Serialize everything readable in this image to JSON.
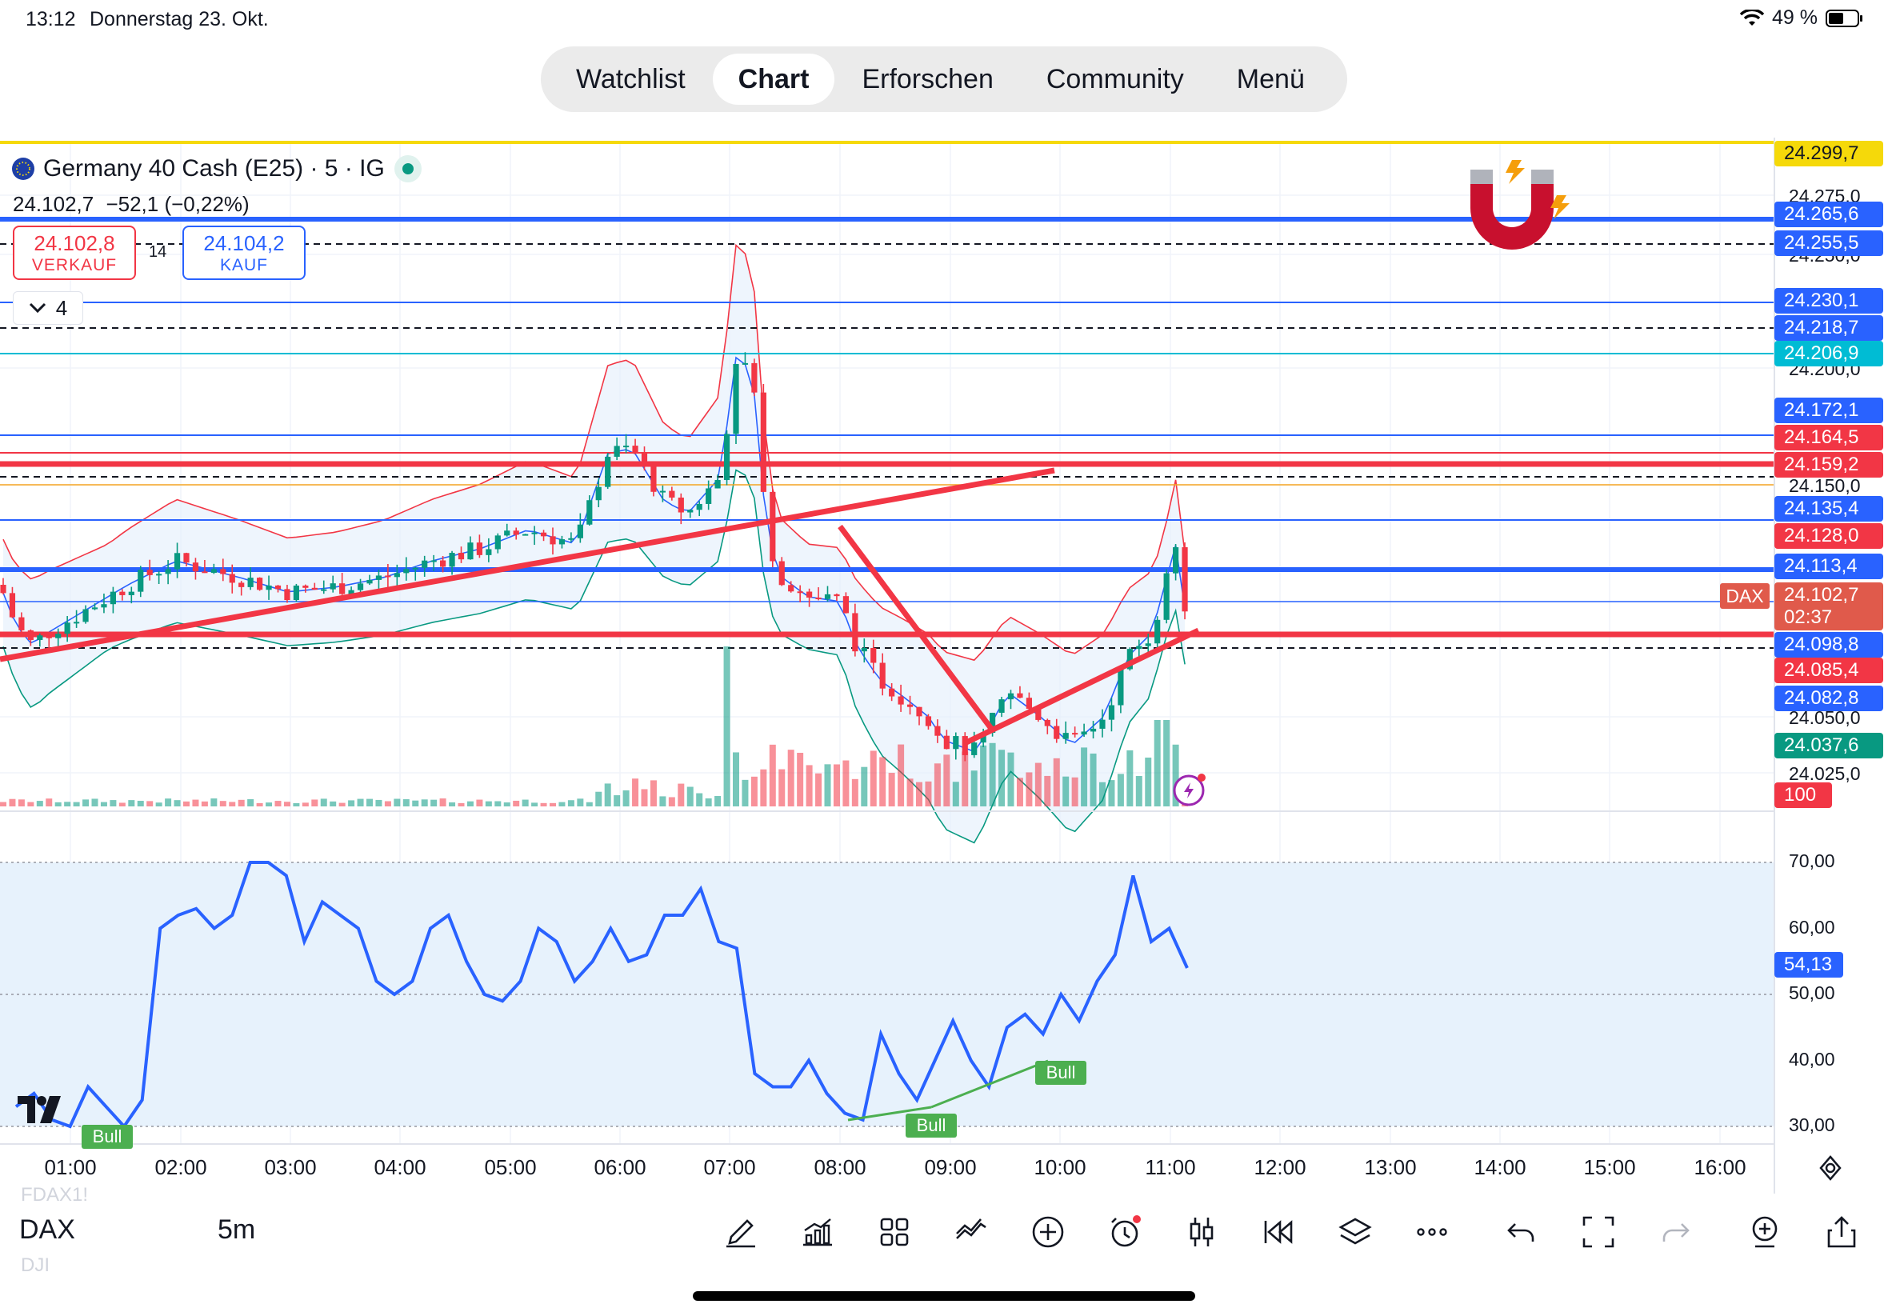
{
  "status_bar": {
    "time": "13:12",
    "date": "Donnerstag 23. Okt.",
    "battery": "49 %"
  },
  "nav_tabs": [
    "Watchlist",
    "Chart",
    "Erforschen",
    "Community",
    "Menü"
  ],
  "active_tab": "Chart",
  "legend": {
    "symbol": "Germany 40 Cash (E25) · 5 · IG",
    "last": "24.102,7",
    "change": "−52,1 (−0,22%)",
    "sell_price": "24.102,8",
    "sell_label": "VERKAUF",
    "buy_price": "24.104,2",
    "buy_label": "KAUF",
    "spread": "14",
    "collapsed_count": "4"
  },
  "price_axis": {
    "ticks": [
      "24.275,0",
      "24.250,0",
      "24.200,0",
      "24.150,0",
      "24.050,0",
      "24.025,0"
    ],
    "labels": [
      {
        "text": "24.299,7",
        "color": "#f5d90a",
        "text_color": "#131722"
      },
      {
        "text": "24.265,6",
        "color": "#2962ff"
      },
      {
        "text": "24.255,5",
        "color": "#2962ff"
      },
      {
        "text": "24.230,1",
        "color": "#2962ff"
      },
      {
        "text": "24.218,7",
        "color": "#2962ff"
      },
      {
        "text": "24.206,9",
        "color": "#00bcd4"
      },
      {
        "text": "24.172,1",
        "color": "#2962ff"
      },
      {
        "text": "24.164,5",
        "color": "#f23645"
      },
      {
        "text": "24.159,2",
        "color": "#f23645"
      },
      {
        "text": "24.135,4",
        "color": "#2962ff"
      },
      {
        "text": "24.128,0",
        "color": "#f23645"
      },
      {
        "text": "24.113,4",
        "color": "#2962ff"
      },
      {
        "text": "24.102,7",
        "color": "#e05a4b"
      },
      {
        "text": "02:37",
        "color": "#e05a4b"
      },
      {
        "text": "24.098,8",
        "color": "#2962ff"
      },
      {
        "text": "24.085,4",
        "color": "#f23645"
      },
      {
        "text": "24.082,8",
        "color": "#2962ff"
      },
      {
        "text": "24.037,6",
        "color": "#089981"
      },
      {
        "text": "100",
        "color": "#f23645"
      }
    ],
    "dax_tag": "DAX"
  },
  "rsi_axis": {
    "ticks": [
      "70,00",
      "60,00",
      "50,00",
      "40,00",
      "30,00"
    ],
    "current": "54,13"
  },
  "rsi_labels": [
    "Bull",
    "Bull",
    "Bull"
  ],
  "time_axis": [
    "01:00",
    "02:00",
    "03:00",
    "04:00",
    "05:00",
    "06:00",
    "07:00",
    "08:00",
    "09:00",
    "10:00",
    "11:00",
    "12:00",
    "13:00",
    "14:00",
    "15:00",
    "16:00"
  ],
  "bottom": {
    "symbol": "DAX",
    "interval": "5m",
    "ghost_top": "FDAX1!",
    "ghost_bottom": "DJI"
  },
  "chart_data": {
    "type": "candlestick",
    "instrument": "Germany 40 Cash (E25)",
    "interval": "5m",
    "x_range": [
      "00:30",
      "11:10"
    ],
    "y_range": [
      24025,
      24300
    ],
    "last_price": 24102.7,
    "rsi_last": 54.13,
    "rsi_range": [
      30,
      70
    ],
    "rsi_series_approx": [
      33,
      35,
      31,
      30,
      36,
      33,
      30,
      34,
      60,
      62,
      63,
      60,
      62,
      70,
      70,
      68,
      58,
      64,
      62,
      60,
      52,
      50,
      52,
      60,
      62,
      55,
      50,
      49,
      52,
      60,
      58,
      52,
      55,
      60,
      55,
      56,
      62,
      62,
      66,
      58,
      57,
      38,
      36,
      36,
      40,
      35,
      32,
      31,
      44,
      38,
      34,
      40,
      46,
      40,
      36,
      45,
      47,
      44,
      50,
      46,
      52,
      56,
      68,
      58,
      60,
      54
    ]
  }
}
